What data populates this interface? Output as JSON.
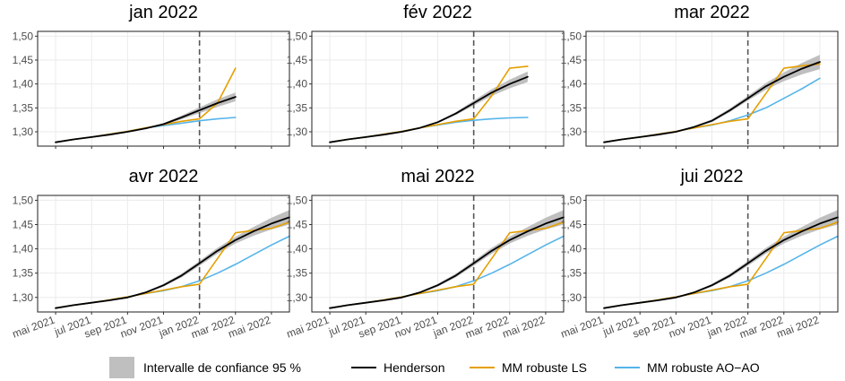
{
  "chart_data": {
    "type": "line",
    "x_ticks": [
      "mai 2021",
      "jul 2021",
      "sep 2021",
      "nov 2021",
      "jan 2022",
      "mar 2022",
      "mai 2022"
    ],
    "y_ticks": [
      "1,50",
      "1,45",
      "1,40",
      "1,35",
      "1,30"
    ],
    "ylim": [
      1.27,
      1.51
    ],
    "xlim": [
      "2021-04",
      "2022-06"
    ],
    "grid": true,
    "legend_position": "bottom",
    "legend": [
      {
        "label": "Intervalle de confiance 95 %",
        "kind": "band",
        "color": "#bfbfbf"
      },
      {
        "label": "Henderson",
        "kind": "line",
        "color": "#000000"
      },
      {
        "label": "MM robuste LS",
        "kind": "line",
        "color": "#E69F00"
      },
      {
        "label": "MM robuste AO−AO",
        "kind": "line",
        "color": "#56B4E9"
      }
    ],
    "months": [
      "2021-05",
      "2021-06",
      "2021-07",
      "2021-08",
      "2021-09",
      "2021-10",
      "2021-11",
      "2021-12",
      "2022-01",
      "2022-02",
      "2022-03",
      "2022-04",
      "2022-05",
      "2022-06"
    ],
    "panels": [
      {
        "title": "jan 2022",
        "vline": "2022-01",
        "henderson": [
          1.278,
          1.284,
          1.289,
          1.294,
          1.3,
          1.307,
          1.316,
          1.33,
          1.345,
          1.36,
          1.373
        ],
        "band_lower": [
          1.277,
          1.283,
          1.288,
          1.293,
          1.299,
          1.306,
          1.314,
          1.326,
          1.339,
          1.352,
          1.364
        ],
        "band_upper": [
          1.279,
          1.285,
          1.29,
          1.295,
          1.301,
          1.308,
          1.318,
          1.334,
          1.351,
          1.368,
          1.382
        ],
        "ls": [
          1.278,
          1.284,
          1.289,
          1.295,
          1.301,
          1.308,
          1.315,
          1.322,
          1.327,
          1.36,
          1.433
        ],
        "aoao": [
          1.278,
          1.284,
          1.289,
          1.295,
          1.301,
          1.308,
          1.313,
          1.318,
          1.323,
          1.327,
          1.33
        ]
      },
      {
        "title": "fév 2022",
        "vline": "2022-01",
        "henderson": [
          1.278,
          1.284,
          1.289,
          1.294,
          1.3,
          1.308,
          1.32,
          1.338,
          1.36,
          1.382,
          1.4,
          1.415
        ],
        "band_lower": [
          1.277,
          1.283,
          1.288,
          1.293,
          1.299,
          1.307,
          1.318,
          1.335,
          1.355,
          1.375,
          1.391,
          1.404
        ],
        "band_upper": [
          1.279,
          1.285,
          1.29,
          1.295,
          1.301,
          1.309,
          1.322,
          1.341,
          1.365,
          1.389,
          1.409,
          1.426
        ],
        "ls": [
          1.278,
          1.284,
          1.289,
          1.295,
          1.301,
          1.308,
          1.315,
          1.322,
          1.327,
          1.375,
          1.433,
          1.437
        ],
        "aoao": [
          1.278,
          1.284,
          1.289,
          1.295,
          1.301,
          1.308,
          1.314,
          1.32,
          1.324,
          1.327,
          1.329,
          1.33
        ]
      },
      {
        "title": "mar 2022",
        "vline": "2022-01",
        "henderson": [
          1.278,
          1.284,
          1.289,
          1.294,
          1.3,
          1.31,
          1.323,
          1.345,
          1.37,
          1.395,
          1.415,
          1.432,
          1.446
        ],
        "band_lower": [
          1.277,
          1.283,
          1.288,
          1.293,
          1.299,
          1.308,
          1.32,
          1.341,
          1.365,
          1.388,
          1.406,
          1.42,
          1.431
        ],
        "band_upper": [
          1.279,
          1.285,
          1.29,
          1.295,
          1.301,
          1.312,
          1.326,
          1.349,
          1.375,
          1.402,
          1.424,
          1.444,
          1.461
        ],
        "ls": [
          1.278,
          1.284,
          1.289,
          1.295,
          1.301,
          1.308,
          1.315,
          1.322,
          1.327,
          1.38,
          1.433,
          1.438,
          1.442
        ],
        "aoao": [
          1.278,
          1.284,
          1.289,
          1.295,
          1.301,
          1.308,
          1.314,
          1.323,
          1.335,
          1.35,
          1.37,
          1.39,
          1.412
        ]
      },
      {
        "title": "avr 2022",
        "vline": "2022-01",
        "henderson": [
          1.278,
          1.284,
          1.289,
          1.294,
          1.3,
          1.31,
          1.325,
          1.345,
          1.37,
          1.396,
          1.418,
          1.436,
          1.452,
          1.465
        ],
        "band_lower": [
          1.277,
          1.283,
          1.288,
          1.293,
          1.299,
          1.308,
          1.322,
          1.341,
          1.365,
          1.39,
          1.411,
          1.427,
          1.44,
          1.45
        ],
        "band_upper": [
          1.279,
          1.285,
          1.29,
          1.295,
          1.301,
          1.312,
          1.328,
          1.349,
          1.375,
          1.402,
          1.425,
          1.445,
          1.464,
          1.48
        ],
        "ls": [
          1.278,
          1.284,
          1.289,
          1.295,
          1.301,
          1.308,
          1.315,
          1.322,
          1.327,
          1.38,
          1.433,
          1.438,
          1.442,
          1.455
        ],
        "aoao": [
          1.278,
          1.284,
          1.289,
          1.295,
          1.301,
          1.308,
          1.314,
          1.322,
          1.334,
          1.35,
          1.368,
          1.388,
          1.408,
          1.426
        ]
      },
      {
        "title": "mai 2022",
        "vline": "2022-01",
        "henderson": [
          1.278,
          1.284,
          1.289,
          1.294,
          1.3,
          1.31,
          1.325,
          1.345,
          1.37,
          1.396,
          1.418,
          1.436,
          1.452,
          1.465
        ],
        "band_lower": [
          1.277,
          1.283,
          1.288,
          1.293,
          1.299,
          1.308,
          1.322,
          1.341,
          1.365,
          1.39,
          1.411,
          1.427,
          1.44,
          1.45
        ],
        "band_upper": [
          1.279,
          1.285,
          1.29,
          1.295,
          1.301,
          1.312,
          1.328,
          1.349,
          1.375,
          1.402,
          1.425,
          1.445,
          1.464,
          1.48
        ],
        "ls": [
          1.278,
          1.284,
          1.289,
          1.295,
          1.301,
          1.308,
          1.315,
          1.322,
          1.327,
          1.38,
          1.433,
          1.438,
          1.442,
          1.455
        ],
        "aoao": [
          1.278,
          1.284,
          1.289,
          1.295,
          1.301,
          1.308,
          1.314,
          1.322,
          1.334,
          1.35,
          1.368,
          1.388,
          1.408,
          1.426
        ]
      },
      {
        "title": "jui 2022",
        "vline": "2022-01",
        "henderson": [
          1.278,
          1.284,
          1.289,
          1.294,
          1.3,
          1.31,
          1.325,
          1.345,
          1.37,
          1.396,
          1.418,
          1.436,
          1.452,
          1.465
        ],
        "band_lower": [
          1.277,
          1.283,
          1.288,
          1.293,
          1.299,
          1.308,
          1.322,
          1.341,
          1.365,
          1.39,
          1.411,
          1.427,
          1.44,
          1.45
        ],
        "band_upper": [
          1.279,
          1.285,
          1.29,
          1.295,
          1.301,
          1.312,
          1.328,
          1.349,
          1.375,
          1.402,
          1.425,
          1.445,
          1.464,
          1.48
        ],
        "ls": [
          1.278,
          1.284,
          1.289,
          1.295,
          1.301,
          1.308,
          1.315,
          1.322,
          1.327,
          1.38,
          1.433,
          1.438,
          1.442,
          1.455
        ],
        "aoao": [
          1.278,
          1.284,
          1.289,
          1.295,
          1.301,
          1.308,
          1.314,
          1.322,
          1.334,
          1.35,
          1.368,
          1.388,
          1.408,
          1.426
        ]
      }
    ]
  }
}
